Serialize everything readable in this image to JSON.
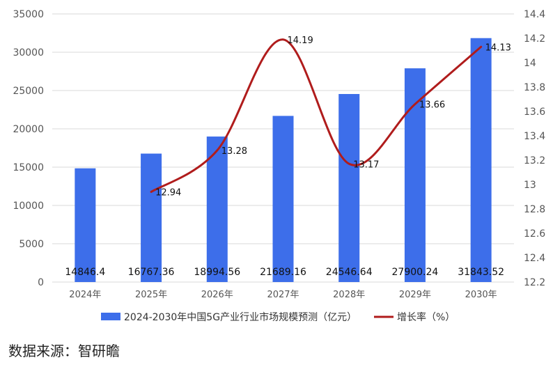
{
  "chart_data": {
    "type": "bar",
    "categories": [
      "2024年",
      "2025年",
      "2026年",
      "2027年",
      "2028年",
      "2029年",
      "2030年"
    ],
    "series": [
      {
        "name": "2024-2030年中国5G产业行业市场规模预测（亿元）",
        "type": "bar",
        "axis": "left",
        "values": [
          14846.4,
          16767.36,
          18994.56,
          21689.16,
          24546.64,
          27900.24,
          31843.52
        ],
        "labels": [
          "14846.4",
          "16767.36",
          "18994.56",
          "21689.16",
          "24546.64",
          "27900.24",
          "31843.52"
        ],
        "color": "#3D6EEA"
      },
      {
        "name": "增长率（%）",
        "type": "line",
        "axis": "right",
        "values": [
          null,
          12.94,
          13.28,
          14.19,
          13.17,
          13.66,
          14.13
        ],
        "labels": [
          null,
          "12.94",
          "13.28",
          "14.19",
          "13.17",
          "13.66",
          "14.13"
        ],
        "color": "#B01C1C"
      }
    ],
    "y_left": {
      "min": 0,
      "max": 35000,
      "ticks": [
        0,
        5000,
        10000,
        15000,
        20000,
        25000,
        30000,
        35000
      ],
      "tick_labels": [
        "0",
        "5000",
        "10000",
        "15000",
        "20000",
        "25000",
        "30000",
        "35000"
      ]
    },
    "y_right": {
      "min": 12.2,
      "max": 14.4,
      "ticks": [
        12.2,
        12.4,
        12.6,
        12.8,
        13,
        13.2,
        13.4,
        13.6,
        13.8,
        14,
        14.2,
        14.4
      ],
      "tick_labels": [
        "12.2",
        "12.4",
        "12.6",
        "12.8",
        "13",
        "13.2",
        "13.4",
        "13.6",
        "13.8",
        "14",
        "14.2",
        "14.4"
      ]
    },
    "grid": true,
    "legend_position": "bottom"
  },
  "source_text": "数据来源：智研瞻"
}
